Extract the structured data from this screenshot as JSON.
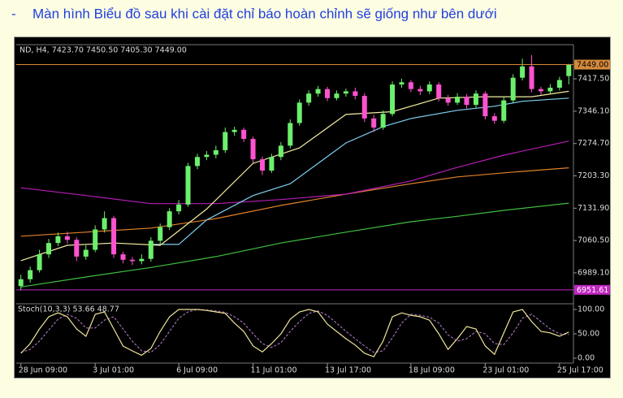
{
  "bullet": "-",
  "heading": "Màn hình Biểu đồ sau khi cài đặt chỉ báo hoàn chỉnh sẽ giống như bên dưới",
  "chart_data": [
    {
      "type": "candlestick",
      "title": "ND, H4, 7423.70 7450.50 7405.30 7449.00",
      "categories": [
        "28 Jun 09:00",
        null,
        null,
        null,
        null,
        null,
        null,
        null,
        "3 Jul 01:00",
        null,
        null,
        null,
        null,
        null,
        null,
        null,
        null,
        "6 Jul 09:00",
        null,
        null,
        null,
        null,
        null,
        null,
        null,
        "11 Jul 01:00",
        null,
        null,
        null,
        null,
        null,
        null,
        null,
        "13 Jul 17:00",
        null,
        null,
        null,
        null,
        null,
        null,
        null,
        null,
        "18 Jul 09:00",
        null,
        null,
        null,
        null,
        null,
        null,
        null,
        "23 Jul 01:00",
        null,
        null,
        null,
        null,
        null,
        null,
        null,
        "25 Jul 17:00",
        null
      ],
      "open": [
        6960,
        6975,
        6995,
        7030,
        7055,
        7070,
        7062,
        7025,
        7040,
        7085,
        7110,
        7030,
        7018,
        7015,
        7020,
        7060,
        7090,
        7125,
        7140,
        7225,
        7245,
        7250,
        7260,
        7300,
        7305,
        7285,
        7240,
        7215,
        7245,
        7270,
        7320,
        7365,
        7385,
        7395,
        7375,
        7385,
        7390,
        7380,
        7330,
        7310,
        7340,
        7405,
        7410,
        7395,
        7390,
        7405,
        7375,
        7365,
        7378,
        7360,
        7385,
        7335,
        7325,
        7370,
        7420,
        7445,
        7395,
        7390,
        7398,
        7423.7
      ],
      "high": [
        6985,
        7003,
        7040,
        7064,
        7078,
        7080,
        7068,
        7050,
        7094,
        7125,
        7115,
        7036,
        7024,
        7030,
        7068,
        7098,
        7132,
        7150,
        7232,
        7252,
        7258,
        7270,
        7310,
        7312,
        7310,
        7290,
        7246,
        7252,
        7278,
        7328,
        7372,
        7392,
        7402,
        7400,
        7392,
        7396,
        7398,
        7386,
        7338,
        7348,
        7412,
        7418,
        7415,
        7402,
        7412,
        7410,
        7382,
        7386,
        7384,
        7392,
        7390,
        7342,
        7378,
        7428,
        7462,
        7470,
        7400,
        7406,
        7422,
        7450.5
      ],
      "low": [
        6950,
        6968,
        6990,
        7022,
        7048,
        7054,
        7015,
        7018,
        7035,
        7078,
        7022,
        7010,
        7006,
        7008,
        7014,
        7052,
        7084,
        7118,
        7135,
        7218,
        7238,
        7242,
        7254,
        7292,
        7278,
        7232,
        7205,
        7210,
        7238,
        7264,
        7314,
        7358,
        7378,
        7368,
        7370,
        7378,
        7372,
        7322,
        7300,
        7305,
        7335,
        7398,
        7388,
        7382,
        7384,
        7368,
        7358,
        7360,
        7352,
        7354,
        7328,
        7318,
        7320,
        7365,
        7414,
        7388,
        7382,
        7385,
        7392,
        7405.3
      ],
      "close": [
        6975,
        6995,
        7030,
        7055,
        7070,
        7062,
        7025,
        7040,
        7085,
        7110,
        7030,
        7018,
        7015,
        7020,
        7060,
        7090,
        7125,
        7140,
        7225,
        7245,
        7250,
        7260,
        7300,
        7305,
        7285,
        7240,
        7215,
        7245,
        7270,
        7320,
        7365,
        7385,
        7395,
        7375,
        7385,
        7390,
        7380,
        7330,
        7310,
        7340,
        7405,
        7410,
        7395,
        7390,
        7405,
        7375,
        7365,
        7378,
        7360,
        7385,
        7335,
        7325,
        7370,
        7420,
        7445,
        7395,
        7390,
        7398,
        7415,
        7449
      ],
      "up_color": "#6cf06c",
      "down_color": "#ff52d0",
      "ylim": [
        6924.4,
        7493.0
      ],
      "yticks": [
        {
          "value": 6989.1,
          "label": "6989.10"
        },
        {
          "value": 7060.5,
          "label": "7060.50"
        },
        {
          "value": 7131.9,
          "label": "7131.90"
        },
        {
          "value": 7203.3,
          "label": "7203.30"
        },
        {
          "value": 7274.7,
          "label": "7274.70"
        },
        {
          "value": 7346.1,
          "label": "7346.10"
        },
        {
          "value": 7417.5,
          "label": "7417.50"
        }
      ],
      "hlines": [
        {
          "value": 7449,
          "label": "7449.00",
          "color": "#d68a3c"
        },
        {
          "value": 6951.61,
          "label": "6951.61",
          "color": "#c026c0"
        }
      ],
      "lines": [
        {
          "color": "#3fbf3f",
          "x": [
            0,
            7,
            14,
            21,
            28,
            35,
            42,
            47,
            52,
            59
          ],
          "values": [
            6958,
            6980,
            7001,
            7025,
            7055,
            7079,
            7102,
            7114,
            7127,
            7143
          ]
        },
        {
          "color": "#e0822a",
          "x": [
            0,
            7,
            14,
            21,
            28,
            35,
            42,
            47,
            52,
            59
          ],
          "values": [
            7070,
            7079,
            7088,
            7109,
            7138,
            7163,
            7186,
            7201,
            7210,
            7221
          ]
        },
        {
          "color": "#b41eb4",
          "x": [
            0,
            7,
            14,
            21,
            28,
            35,
            42,
            47,
            52,
            59
          ],
          "values": [
            7177,
            7160,
            7142,
            7142,
            7151,
            7163,
            7192,
            7222,
            7249,
            7280
          ]
        },
        {
          "color": "#7fd0f0",
          "x": [
            14,
            17,
            20,
            25,
            29,
            32,
            35,
            39,
            42,
            47,
            51,
            54,
            59
          ],
          "values": [
            7052,
            7052,
            7106,
            7160,
            7186,
            7231,
            7276,
            7312,
            7330,
            7348,
            7357,
            7368,
            7375
          ]
        },
        {
          "color": "#f4eca0",
          "x": [
            0,
            5,
            10,
            15,
            20,
            25,
            30,
            35,
            40,
            45,
            50,
            55,
            59
          ],
          "values": [
            7016,
            7050,
            7055,
            7050,
            7130,
            7231,
            7265,
            7339,
            7345,
            7375,
            7378,
            7378,
            7390
          ]
        }
      ]
    },
    {
      "type": "line",
      "title": "Stoch(10,3,3) 53.66 48.77",
      "ylim": [
        -10,
        110
      ],
      "yticks": [
        {
          "value": 0,
          "label": "0.00"
        },
        {
          "value": 50,
          "label": "50.00"
        },
        {
          "value": 100,
          "label": "100.00"
        }
      ],
      "series": [
        {
          "color": "#a070b0",
          "dash": true,
          "values": [
            12,
            18,
            35,
            58,
            80,
            90,
            82,
            62,
            62,
            78,
            85,
            60,
            35,
            15,
            12,
            28,
            55,
            82,
            95,
            100,
            99,
            97,
            94,
            85,
            72,
            50,
            30,
            22,
            32,
            55,
            75,
            92,
            97,
            88,
            72,
            55,
            40,
            25,
            12,
            15,
            42,
            72,
            90,
            88,
            84,
            72,
            48,
            35,
            40,
            55,
            50,
            30,
            28,
            52,
            82,
            90,
            75,
            60,
            50,
            48.77
          ]
        },
        {
          "color": "#efe49a",
          "dash": false,
          "values": [
            10,
            30,
            60,
            85,
            93,
            85,
            60,
            45,
            90,
            95,
            60,
            25,
            15,
            6,
            20,
            55,
            85,
            100,
            100,
            100,
            98,
            95,
            92,
            72,
            55,
            25,
            13,
            30,
            50,
            80,
            95,
            100,
            95,
            70,
            55,
            40,
            27,
            10,
            3,
            35,
            85,
            93,
            88,
            85,
            78,
            50,
            18,
            40,
            65,
            60,
            25,
            8,
            52,
            95,
            100,
            75,
            55,
            52,
            45,
            53.66
          ]
        }
      ]
    }
  ]
}
